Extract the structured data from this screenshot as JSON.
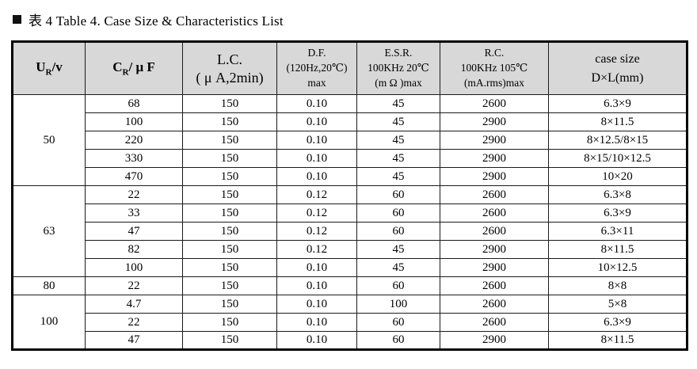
{
  "title": {
    "bullet_icon": "black-square",
    "text": "表 4 Table 4. Case Size & Characteristics List"
  },
  "table": {
    "columns": {
      "ur": {
        "base": "U",
        "sub": "R",
        "rest": "/v"
      },
      "cr": {
        "base": "C",
        "sub": "R",
        "rest": "/ μ F"
      },
      "lc": {
        "lines": [
          "L.C.",
          "( μ A,2min)"
        ]
      },
      "df": {
        "lines": [
          "D.F.",
          "(120Hz,20℃)",
          "max"
        ]
      },
      "esr": {
        "lines": [
          "E.S.R.",
          "100KHz 20℃",
          "(m Ω )max"
        ]
      },
      "rc": {
        "lines": [
          "R.C.",
          "100KHz 105℃",
          "(mA.rms)max"
        ]
      },
      "case": {
        "lines": [
          "case size",
          "D×L(mm)"
        ]
      }
    },
    "groups": [
      {
        "voltage": "50",
        "rows": [
          [
            "68",
            "150",
            "0.10",
            "45",
            "2600",
            "6.3×9"
          ],
          [
            "100",
            "150",
            "0.10",
            "45",
            "2900",
            "8×11.5"
          ],
          [
            "220",
            "150",
            "0.10",
            "45",
            "2900",
            "8×12.5/8×15"
          ],
          [
            "330",
            "150",
            "0.10",
            "45",
            "2900",
            "8×15/10×12.5"
          ],
          [
            "470",
            "150",
            "0.10",
            "45",
            "2900",
            "10×20"
          ]
        ]
      },
      {
        "voltage": "63",
        "rows": [
          [
            "22",
            "150",
            "0.12",
            "60",
            "2600",
            "6.3×8"
          ],
          [
            "33",
            "150",
            "0.12",
            "60",
            "2600",
            "6.3×9"
          ],
          [
            "47",
            "150",
            "0.12",
            "60",
            "2600",
            "6.3×11"
          ],
          [
            "82",
            "150",
            "0.12",
            "45",
            "2900",
            "8×11.5"
          ],
          [
            "100",
            "150",
            "0.10",
            "45",
            "2900",
            "10×12.5"
          ]
        ]
      },
      {
        "voltage": "80",
        "rows": [
          [
            "22",
            "150",
            "0.10",
            "60",
            "2600",
            "8×8"
          ]
        ]
      },
      {
        "voltage": "100",
        "rows": [
          [
            "4.7",
            "150",
            "0.10",
            "100",
            "2600",
            "5×8"
          ],
          [
            "22",
            "150",
            "0.10",
            "60",
            "2600",
            "6.3×9"
          ],
          [
            "47",
            "150",
            "0.10",
            "60",
            "2900",
            "8×11.5"
          ]
        ]
      }
    ],
    "colors": {
      "header_bg": "#d8d8d8",
      "border": "#000000",
      "text": "#000000",
      "page_bg": "#ffffff"
    }
  }
}
